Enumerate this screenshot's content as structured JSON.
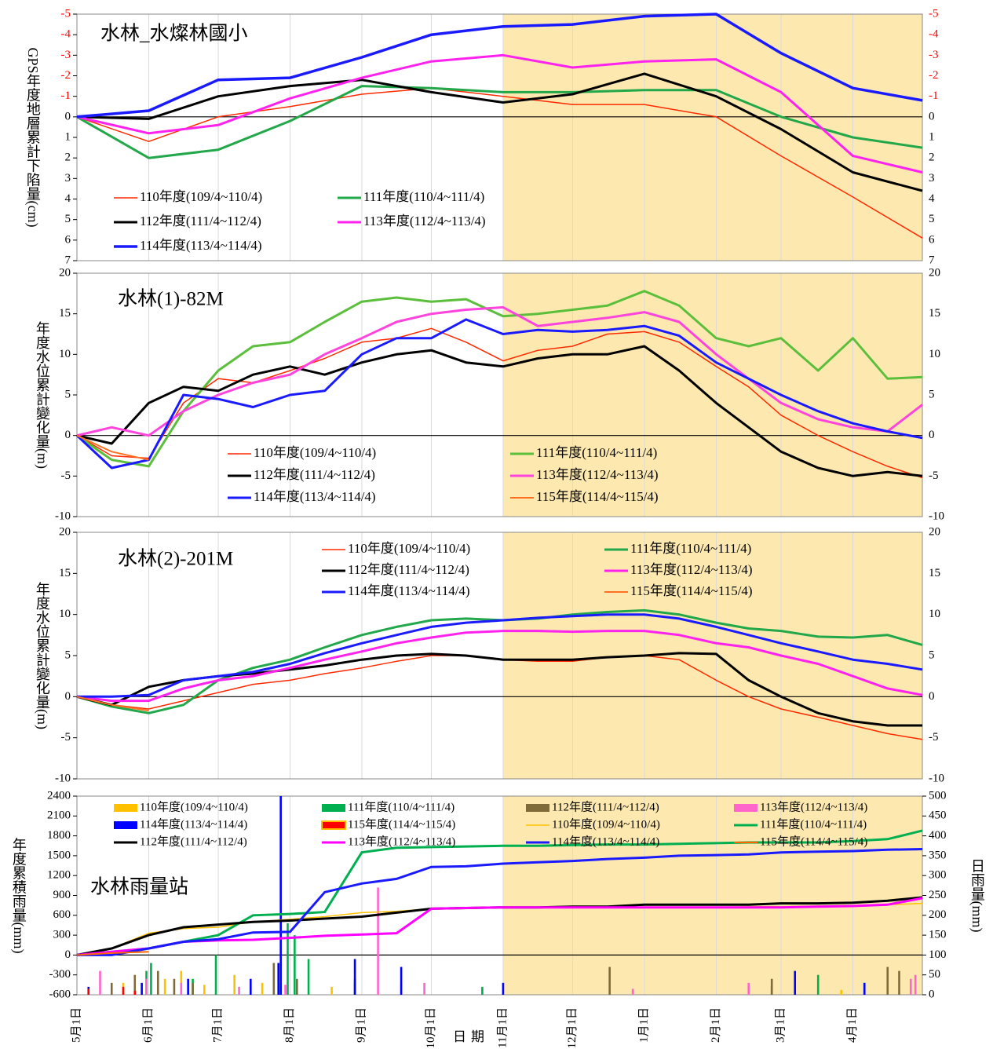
{
  "chart_data": [
    {
      "type": "line",
      "title": "水林_水燦林國小",
      "ylabel": "GPS年度地層累計下陷量(cm)",
      "x": [
        0,
        31,
        61,
        92,
        123,
        153,
        184,
        214,
        245,
        276,
        304,
        335,
        365
      ],
      "ylim": [
        -5,
        7
      ],
      "y_inverted": true,
      "yticks": [
        -5,
        -4,
        -3,
        -2,
        -1,
        0,
        1,
        2,
        3,
        4,
        5,
        6,
        7
      ],
      "mirror_ticks": true,
      "negative_tick_color": "#ff0000",
      "shade": {
        "x": [
          184,
          365
        ],
        "color": "#fde9b0"
      },
      "series": [
        {
          "name": "110年度(109/4~110/4)",
          "color": "#ff2a00",
          "line_width": 1.5,
          "values": [
            0,
            1.2,
            0,
            -0.5,
            -1.1,
            -1.4,
            -1.0,
            -0.6,
            -0.6,
            0,
            1.9,
            3.9,
            5.9
          ]
        },
        {
          "name": "111年度(110/4~111/4)",
          "color": "#22a84a",
          "line_width": 3,
          "values": [
            0,
            2.0,
            1.6,
            0.2,
            -1.5,
            -1.4,
            -1.2,
            -1.2,
            -1.3,
            -1.3,
            0,
            1.0,
            1.5
          ]
        },
        {
          "name": "112年度(111/4~112/4)",
          "color": "#000000",
          "line_width": 3,
          "values": [
            0,
            0.1,
            -1.0,
            -1.5,
            -1.8,
            -1.2,
            -0.7,
            -1.1,
            -2.1,
            -1.0,
            0.6,
            2.7,
            3.6
          ]
        },
        {
          "name": "113年度(112/4~113/4)",
          "color": "#ff22ee",
          "line_width": 3,
          "values": [
            0,
            0.8,
            0.4,
            -0.9,
            -1.9,
            -2.7,
            -3.0,
            -2.4,
            -2.7,
            -2.8,
            -1.2,
            1.9,
            2.7
          ]
        },
        {
          "name": "114年度(113/4~114/4)",
          "color": "#1a1aff",
          "line_width": 3.5,
          "values": [
            0,
            -0.3,
            -1.8,
            -1.9,
            -2.9,
            -4.0,
            -4.4,
            -4.5,
            -4.9,
            -5.0,
            -3.1,
            -1.4,
            -0.8
          ]
        }
      ]
    },
    {
      "type": "line",
      "title": "水林(1)-82M",
      "ylabel": "年度水位累計變化量(m)",
      "x": [
        0,
        15,
        31,
        46,
        61,
        76,
        92,
        107,
        123,
        138,
        153,
        168,
        184,
        199,
        214,
        229,
        245,
        260,
        276,
        290,
        304,
        320,
        335,
        350,
        365
      ],
      "ylim": [
        -10,
        20
      ],
      "yticks": [
        -10,
        -5,
        0,
        5,
        10,
        15,
        20
      ],
      "mirror_ticks": true,
      "shade": {
        "x": [
          184,
          365
        ],
        "color": "#fde9b0"
      },
      "series": [
        {
          "name": "110年度(109/4~110/4)",
          "color": "#ff2a00",
          "line_width": 1.5,
          "values": [
            0,
            -2.5,
            -2.8,
            4,
            7,
            6.5,
            8,
            9.5,
            11.5,
            12,
            13.2,
            11.5,
            9.2,
            10.5,
            11,
            12.5,
            12.8,
            11.5,
            8.5,
            6,
            2.5,
            0,
            -2,
            -3.8,
            -5.2
          ]
        },
        {
          "name": "111年度(110/4~111/4)",
          "color": "#5cbf3c",
          "line_width": 3,
          "values": [
            0,
            -3,
            -3.8,
            3,
            8,
            11,
            11.5,
            14,
            16.5,
            17,
            16.5,
            16.8,
            14.7,
            15,
            15.5,
            16,
            17.8,
            16,
            12,
            11,
            12,
            8,
            12,
            7,
            7.2
          ]
        },
        {
          "name": "112年度(111/4~112/4)",
          "color": "#000000",
          "line_width": 3,
          "values": [
            0,
            -1,
            4,
            6,
            5.5,
            7.5,
            8.5,
            7.5,
            9,
            10,
            10.5,
            9,
            8.5,
            9.5,
            10,
            10,
            11,
            8,
            4,
            1,
            -2,
            -4,
            -5,
            -4.5,
            -5
          ]
        },
        {
          "name": "113年度(112/4~113/4)",
          "color": "#ff44dd",
          "line_width": 3,
          "values": [
            0,
            1,
            0,
            3,
            5,
            6.5,
            7.5,
            10,
            12,
            14,
            15,
            15.5,
            15.8,
            13.5,
            14,
            14.5,
            15.2,
            14,
            10,
            7,
            4,
            2,
            1,
            0.5,
            3.8
          ]
        },
        {
          "name": "114年度(113/4~114/4)",
          "color": "#1a1aff",
          "line_width": 3,
          "values": [
            0,
            -4,
            -3,
            5,
            4.5,
            3.5,
            5,
            5.5,
            10,
            12,
            12,
            14.3,
            12.5,
            13,
            12.8,
            13,
            13.5,
            12.3,
            9,
            7,
            5,
            3,
            1.5,
            0.5,
            -0.3
          ]
        },
        {
          "name": "115年度(114/4~115/4)",
          "color": "#ff7020",
          "line_width": 2,
          "values": [
            0,
            -2,
            -3,
            null,
            null,
            null,
            null,
            null,
            null,
            null,
            null,
            null,
            null,
            null,
            null,
            null,
            null,
            null,
            null,
            null,
            null,
            null,
            null,
            null,
            null
          ]
        }
      ]
    },
    {
      "type": "line",
      "title": "水林(2)-201M",
      "ylabel": "年度水位累計變化量(m)",
      "x": [
        0,
        15,
        31,
        46,
        61,
        76,
        92,
        107,
        123,
        138,
        153,
        168,
        184,
        199,
        214,
        229,
        245,
        260,
        276,
        290,
        304,
        320,
        335,
        350,
        365
      ],
      "ylim": [
        -10,
        20
      ],
      "yticks": [
        -10,
        -5,
        0,
        5,
        10,
        15,
        20
      ],
      "mirror_ticks": true,
      "shade": {
        "x": [
          184,
          365
        ],
        "color": "#fde9b0"
      },
      "series": [
        {
          "name": "110年度(109/4~110/4)",
          "color": "#ff2a00",
          "line_width": 1.5,
          "values": [
            0,
            -1,
            -1.5,
            -0.5,
            0.5,
            1.5,
            2,
            2.8,
            3.5,
            4.3,
            5,
            5,
            4.5,
            4.3,
            4.3,
            4.8,
            5,
            4.5,
            2,
            0,
            -1.5,
            -2.5,
            -3.5,
            -4.5,
            -5.2
          ]
        },
        {
          "name": "111年度(110/4~111/4)",
          "color": "#22a84a",
          "line_width": 3,
          "values": [
            0,
            -1.2,
            -2,
            -1,
            2,
            3.5,
            4.5,
            6,
            7.5,
            8.5,
            9.3,
            9.5,
            9.3,
            9.5,
            10,
            10.3,
            10.5,
            10,
            9,
            8.3,
            8,
            7.3,
            7.2,
            7.5,
            6.3
          ]
        },
        {
          "name": "112年度(111/4~112/4)",
          "color": "#000000",
          "line_width": 3,
          "values": [
            0,
            -1,
            1.2,
            2,
            2.5,
            2.8,
            3.3,
            3.8,
            4.5,
            5,
            5.2,
            5,
            4.5,
            4.5,
            4.5,
            4.8,
            5,
            5.3,
            5.2,
            2,
            0,
            -2,
            -3,
            -3.5,
            -3.5
          ]
        },
        {
          "name": "113年度(112/4~113/4)",
          "color": "#ff22ee",
          "line_width": 3,
          "values": [
            0,
            -0.5,
            -0.5,
            1,
            2,
            2.5,
            3.5,
            4.5,
            5.5,
            6.5,
            7.2,
            7.8,
            8,
            8,
            7.9,
            8,
            8,
            7.5,
            6.5,
            6,
            5,
            4,
            2.5,
            1,
            0.2
          ]
        },
        {
          "name": "114年度(113/4~114/4)",
          "color": "#1a1aff",
          "line_width": 3,
          "values": [
            0,
            0,
            0.2,
            2,
            2.5,
            3,
            4,
            5.3,
            6.5,
            7.5,
            8.5,
            9,
            9.3,
            9.6,
            9.8,
            10,
            10,
            9.5,
            8.5,
            7.5,
            6.5,
            5.5,
            4.5,
            4,
            3.3
          ]
        },
        {
          "name": "115年度(114/4~115/4)",
          "color": "#ff7020",
          "line_width": 2,
          "values": [
            0,
            -1,
            -1.7,
            null,
            null,
            null,
            null,
            null,
            null,
            null,
            null,
            null,
            null,
            null,
            null,
            null,
            null,
            null,
            null,
            null,
            null,
            null,
            null,
            null,
            null
          ]
        }
      ]
    },
    {
      "type": "bar_line",
      "title": "水林雨量站",
      "ylabel": "年度累積雨量(mm)",
      "y2label": "日雨量(mm)",
      "xlabel": "日期",
      "x": [
        0,
        15,
        31,
        46,
        61,
        76,
        92,
        107,
        123,
        138,
        153,
        168,
        184,
        199,
        214,
        229,
        245,
        260,
        276,
        290,
        304,
        320,
        335,
        350,
        365
      ],
      "xlim": [
        0,
        365
      ],
      "xticks": [
        {
          "value": 0,
          "label": "5月1日"
        },
        {
          "value": 31,
          "label": "6月1日"
        },
        {
          "value": 61,
          "label": "7月1日"
        },
        {
          "value": 92,
          "label": "8月1日"
        },
        {
          "value": 123,
          "label": "9月1日"
        },
        {
          "value": 153,
          "label": "10月1日"
        },
        {
          "value": 184,
          "label": "11月1日"
        },
        {
          "value": 214,
          "label": "12月1日"
        },
        {
          "value": 245,
          "label": "1月1日"
        },
        {
          "value": 276,
          "label": "2月1日"
        },
        {
          "value": 304,
          "label": "3月1日"
        },
        {
          "value": 335,
          "label": "4月1日"
        }
      ],
      "ylim": [
        -600,
        2400
      ],
      "yticks": [
        -600,
        -300,
        0,
        300,
        600,
        900,
        1200,
        1500,
        1800,
        2100,
        2400
      ],
      "y2lim": [
        0,
        500
      ],
      "y2ticks": [
        0,
        50,
        100,
        150,
        200,
        250,
        300,
        350,
        400,
        450,
        500
      ],
      "shade": {
        "x": [
          184,
          365
        ],
        "color": "#fde9b0"
      },
      "series": [
        {
          "name": "110年度(109/4~110/4)",
          "kind": "bar",
          "axis": "y2",
          "color": "#ffc000",
          "x": [
            20,
            38,
            45,
            55,
            68,
            80,
            110,
            140,
            175,
            240,
            330,
            350
          ],
          "values": [
            30,
            40,
            60,
            25,
            50,
            30,
            20,
            30,
            15,
            10,
            12,
            10
          ]
        },
        {
          "name": "111年度(110/4~111/4)",
          "kind": "bar",
          "axis": "y2",
          "color": "#00b050",
          "x": [
            30,
            32,
            50,
            60,
            88,
            91,
            94,
            100,
            120,
            175,
            300,
            320,
            340
          ],
          "values": [
            60,
            80,
            40,
            100,
            30,
            180,
            150,
            90,
            40,
            20,
            20,
            50,
            30
          ]
        },
        {
          "name": "112年度(111/4~112/4)",
          "kind": "bar",
          "axis": "y2",
          "color": "#7f6a3a",
          "x": [
            15,
            25,
            35,
            42,
            50,
            85,
            95,
            120,
            230,
            300,
            350,
            355
          ],
          "values": [
            30,
            50,
            60,
            40,
            30,
            80,
            40,
            30,
            70,
            40,
            70,
            60
          ]
        },
        {
          "name": "113年度(112/4~113/4)",
          "kind": "bar",
          "axis": "y2",
          "color": "#ff66cc",
          "x": [
            10,
            30,
            45,
            70,
            90,
            130,
            150,
            240,
            290,
            360,
            362
          ],
          "values": [
            60,
            40,
            30,
            20,
            25,
            270,
            30,
            15,
            30,
            40,
            50
          ]
        },
        {
          "name": "114年度(113/4~114/4)",
          "kind": "bar",
          "axis": "y2",
          "color": "#0000ff",
          "x": [
            5,
            28,
            48,
            75,
            87,
            88,
            120,
            140,
            184,
            310,
            340
          ],
          "values": [
            20,
            30,
            40,
            40,
            80,
            500,
            90,
            70,
            30,
            60,
            30
          ]
        },
        {
          "name": "115年度(114/4~115/4)",
          "kind": "bar",
          "axis": "y2",
          "color": "#ff0000",
          "edgecolor": "#ffc000",
          "x": [
            5,
            20,
            25
          ],
          "values": [
            15,
            20,
            10
          ]
        },
        {
          "name": "110年度(109/4~110/4)",
          "kind": "line",
          "color": "#ffc000",
          "line_width": 1.5,
          "values": [
            0,
            100,
            330,
            400,
            420,
            500,
            540,
            580,
            640,
            660,
            700,
            700,
            720,
            720,
            720,
            720,
            720,
            720,
            720,
            730,
            730,
            740,
            750,
            760,
            780
          ]
        },
        {
          "name": "111年度(110/4~111/4)",
          "kind": "line",
          "color": "#00b050",
          "line_width": 3,
          "values": [
            0,
            50,
            100,
            200,
            300,
            600,
            620,
            650,
            1550,
            1620,
            1630,
            1640,
            1650,
            1650,
            1660,
            1670,
            1670,
            1680,
            1690,
            1700,
            1700,
            1700,
            1720,
            1750,
            1880
          ]
        },
        {
          "name": "112年度(111/4~112/4)",
          "kind": "line",
          "color": "#000000",
          "line_width": 3,
          "values": [
            0,
            100,
            300,
            420,
            460,
            500,
            520,
            550,
            580,
            640,
            700,
            710,
            720,
            720,
            730,
            730,
            760,
            760,
            760,
            760,
            780,
            780,
            790,
            820,
            870
          ]
        },
        {
          "name": "113年度(112/4~113/4)",
          "kind": "line",
          "color": "#ff00ff",
          "line_width": 3,
          "values": [
            0,
            50,
            100,
            200,
            220,
            230,
            260,
            290,
            310,
            330,
            700,
            710,
            720,
            720,
            720,
            720,
            720,
            720,
            720,
            720,
            720,
            730,
            740,
            760,
            860
          ]
        },
        {
          "name": "114年度(113/4~114/4)",
          "kind": "line",
          "color": "#1a1aff",
          "line_width": 3,
          "values": [
            0,
            0,
            100,
            200,
            240,
            340,
            350,
            950,
            1080,
            1150,
            1330,
            1340,
            1380,
            1400,
            1420,
            1450,
            1470,
            1500,
            1510,
            1520,
            1550,
            1560,
            1570,
            1590,
            1600
          ]
        },
        {
          "name": "115年度(114/4~115/4)",
          "kind": "line",
          "color": "#ff6600",
          "line_width": 2,
          "values": [
            0,
            30,
            50,
            null,
            null,
            null,
            null,
            null,
            null,
            null,
            null,
            null,
            null,
            null,
            null,
            null,
            null,
            null,
            null,
            null,
            null,
            null,
            null,
            null,
            null
          ]
        }
      ]
    }
  ]
}
